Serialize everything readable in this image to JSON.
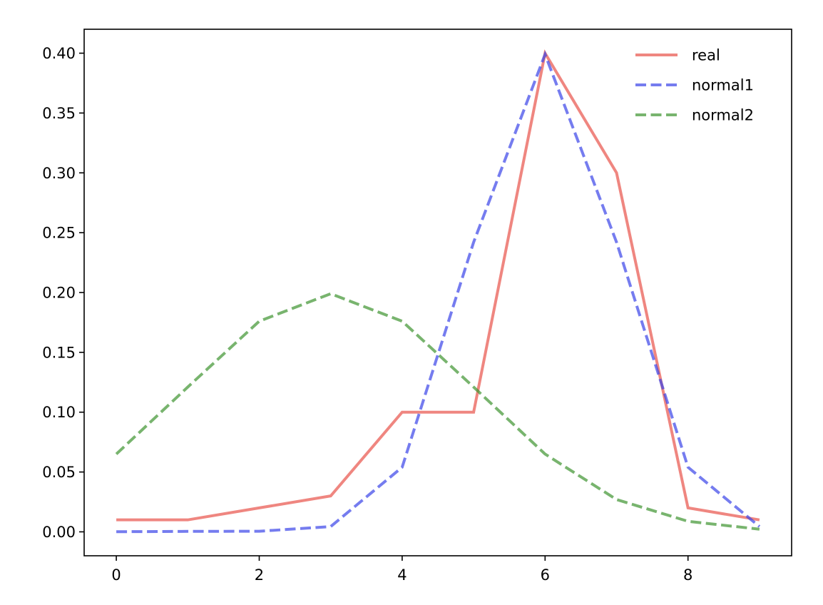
{
  "chart_data": {
    "type": "line",
    "title": "",
    "xlabel": "",
    "ylabel": "",
    "x": [
      0,
      1,
      2,
      3,
      4,
      5,
      6,
      7,
      8,
      9
    ],
    "xlim": [
      -0.45,
      9.45
    ],
    "ylim": [
      -0.02,
      0.42
    ],
    "xticks": [
      0,
      2,
      4,
      6,
      8
    ],
    "xtick_labels": [
      "0",
      "2",
      "4",
      "6",
      "8"
    ],
    "yticks": [
      0.0,
      0.05,
      0.1,
      0.15,
      0.2,
      0.25,
      0.3,
      0.35,
      0.4
    ],
    "ytick_labels": [
      "0.00",
      "0.05",
      "0.10",
      "0.15",
      "0.20",
      "0.25",
      "0.30",
      "0.35",
      "0.40"
    ],
    "grid": false,
    "legend_position": "top-right",
    "series": [
      {
        "name": "real",
        "values": [
          0.01,
          0.01,
          0.02,
          0.03,
          0.1,
          0.1,
          0.4,
          0.3,
          0.02,
          0.01
        ],
        "color": "#e8534a",
        "style": "solid"
      },
      {
        "name": "normal1",
        "values": [
          0.0001,
          0.0004,
          0.0005,
          0.0044,
          0.054,
          0.242,
          0.399,
          0.242,
          0.054,
          0.0044
        ],
        "color": "#3a44e8",
        "style": "dashed"
      },
      {
        "name": "normal2",
        "values": [
          0.065,
          0.121,
          0.176,
          0.199,
          0.176,
          0.121,
          0.065,
          0.027,
          0.0088,
          0.0022
        ],
        "color": "#3f9431",
        "style": "dashed"
      }
    ]
  }
}
